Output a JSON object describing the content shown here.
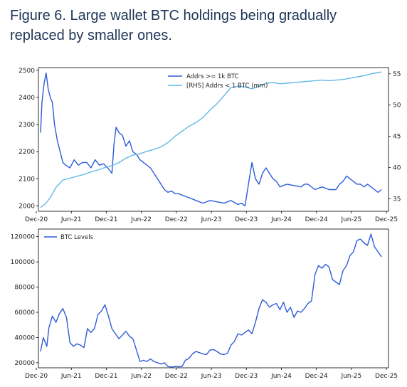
{
  "title": "Figure 6. Large wallet BTC holdings being gradually replaced by smaller ones.",
  "colors": {
    "dark_blue": "#2e5bd9",
    "light_blue": "#62b8ea",
    "title": "#1d3557"
  },
  "chart_data": [
    {
      "type": "line",
      "title": "",
      "xlabel": "",
      "ylabel": "",
      "x_ticks": [
        "Dec-20",
        "Jun-21",
        "Dec-21",
        "Jun-22",
        "Dec-22",
        "Jun-23",
        "Dec-23",
        "Jun-24",
        "Dec-24",
        "Jun-25",
        "Dec-25"
      ],
      "ylim": [
        1980,
        2510
      ],
      "y_ticks": [
        "2000",
        "2100",
        "2200",
        "2300",
        "2400",
        "2500"
      ],
      "y2lim": [
        33,
        56
      ],
      "y2_ticks": [
        "35",
        "40",
        "45",
        "50",
        "55"
      ],
      "legend_position": "top-center",
      "series": [
        {
          "name": "Addrs >= 1k BTC",
          "axis": "left",
          "color": "#2e5bd9",
          "x": [
            2020.98,
            2021.0,
            2021.03,
            2021.06,
            2021.09,
            2021.12,
            2021.15,
            2021.18,
            2021.22,
            2021.26,
            2021.3,
            2021.34,
            2021.4,
            2021.46,
            2021.52,
            2021.58,
            2021.64,
            2021.7,
            2021.76,
            2021.82,
            2021.88,
            2021.94,
            2022.0,
            2022.03,
            2022.06,
            2022.1,
            2022.15,
            2022.2,
            2022.25,
            2022.3,
            2022.35,
            2022.4,
            2022.45,
            2022.5,
            2022.55,
            2022.6,
            2022.65,
            2022.7,
            2022.75,
            2022.8,
            2022.85,
            2022.9,
            2022.95,
            2023.0,
            2023.1,
            2023.2,
            2023.3,
            2023.4,
            2023.5,
            2023.6,
            2023.7,
            2023.8,
            2023.85,
            2023.9,
            2023.95,
            2024.0,
            2024.05,
            2024.1,
            2024.15,
            2024.2,
            2024.25,
            2024.3,
            2024.35,
            2024.4,
            2024.5,
            2024.6,
            2024.7,
            2024.75,
            2024.8,
            2024.9,
            2025.0,
            2025.1,
            2025.2,
            2025.25,
            2025.3,
            2025.35,
            2025.4,
            2025.45,
            2025.5,
            2025.55,
            2025.6,
            2025.65,
            2025.7,
            2025.75,
            2025.8,
            2025.85
          ],
          "values": [
            2270,
            2380,
            2450,
            2490,
            2430,
            2400,
            2380,
            2300,
            2240,
            2200,
            2160,
            2150,
            2140,
            2170,
            2150,
            2160,
            2160,
            2140,
            2170,
            2150,
            2155,
            2140,
            2120,
            2230,
            2290,
            2270,
            2260,
            2220,
            2240,
            2200,
            2190,
            2170,
            2160,
            2150,
            2140,
            2120,
            2100,
            2080,
            2060,
            2050,
            2055,
            2045,
            2045,
            2040,
            2030,
            2020,
            2010,
            2020,
            2015,
            2010,
            2020,
            2005,
            2010,
            2000,
            2080,
            2160,
            2100,
            2080,
            2120,
            2140,
            2120,
            2100,
            2090,
            2070,
            2080,
            2075,
            2070,
            2080,
            2080,
            2060,
            2070,
            2060,
            2060,
            2080,
            2090,
            2110,
            2100,
            2090,
            2080,
            2080,
            2070,
            2080,
            2070,
            2060,
            2050,
            2060
          ]
        },
        {
          "name": "[RHS] Addrs < 1 BTC (mm)",
          "axis": "right",
          "color": "#62b8ea",
          "x": [
            2020.98,
            2021.05,
            2021.12,
            2021.2,
            2021.3,
            2021.4,
            2021.5,
            2021.6,
            2021.7,
            2021.8,
            2021.9,
            2022.0,
            2022.1,
            2022.2,
            2022.3,
            2022.4,
            2022.5,
            2022.6,
            2022.7,
            2022.8,
            2022.9,
            2023.0,
            2023.1,
            2023.2,
            2023.3,
            2023.4,
            2023.5,
            2023.6,
            2023.7,
            2023.8,
            2023.9,
            2024.0,
            2024.1,
            2024.2,
            2024.3,
            2024.4,
            2024.5,
            2024.6,
            2024.7,
            2024.8,
            2024.9,
            2025.0,
            2025.1,
            2025.2,
            2025.3,
            2025.4,
            2025.5,
            2025.6,
            2025.7,
            2025.8,
            2025.85
          ],
          "values": [
            33.6,
            34.2,
            35.2,
            36.8,
            38.0,
            38.3,
            38.6,
            38.9,
            39.3,
            39.6,
            40.0,
            40.3,
            40.8,
            41.5,
            42.0,
            42.2,
            42.6,
            42.9,
            43.3,
            44.0,
            45.0,
            45.8,
            46.6,
            47.2,
            48.0,
            49.2,
            50.2,
            51.5,
            52.8,
            53.0,
            52.9,
            52.6,
            53.0,
            53.5,
            53.6,
            53.4,
            53.5,
            53.6,
            53.7,
            53.8,
            53.9,
            54.0,
            53.9,
            54.0,
            54.1,
            54.3,
            54.5,
            54.7,
            55.0,
            55.2,
            55.3
          ]
        }
      ]
    },
    {
      "type": "line",
      "title": "",
      "xlabel": "",
      "ylabel": "",
      "x_ticks": [
        "Dec-20",
        "Jun-21",
        "Dec-21",
        "Jun-22",
        "Dec-22",
        "Jun-23",
        "Dec-23",
        "Jun-24",
        "Dec-24",
        "Jun-25",
        "Dec-25"
      ],
      "ylim": [
        16000,
        126000
      ],
      "y_ticks": [
        "20000",
        "40000",
        "60000",
        "80000",
        "100000",
        "120000"
      ],
      "legend_position": "top-left",
      "series": [
        {
          "name": "BTC Levels",
          "axis": "left",
          "color": "#2e5bd9",
          "x": [
            2020.98,
            2021.02,
            2021.07,
            2021.1,
            2021.15,
            2021.2,
            2021.25,
            2021.3,
            2021.35,
            2021.4,
            2021.45,
            2021.5,
            2021.55,
            2021.6,
            2021.65,
            2021.7,
            2021.75,
            2021.8,
            2021.85,
            2021.9,
            2021.95,
            2022.0,
            2022.05,
            2022.1,
            2022.15,
            2022.2,
            2022.25,
            2022.3,
            2022.35,
            2022.4,
            2022.45,
            2022.5,
            2022.55,
            2022.6,
            2022.65,
            2022.7,
            2022.75,
            2022.8,
            2022.85,
            2022.9,
            2022.95,
            2023.0,
            2023.05,
            2023.1,
            2023.15,
            2023.2,
            2023.25,
            2023.3,
            2023.35,
            2023.4,
            2023.45,
            2023.5,
            2023.55,
            2023.6,
            2023.65,
            2023.7,
            2023.75,
            2023.8,
            2023.85,
            2023.9,
            2023.95,
            2024.0,
            2024.05,
            2024.1,
            2024.15,
            2024.2,
            2024.25,
            2024.3,
            2024.35,
            2024.4,
            2024.45,
            2024.5,
            2024.55,
            2024.6,
            2024.65,
            2024.7,
            2024.75,
            2024.8,
            2024.85,
            2024.9,
            2024.95,
            2025.0,
            2025.05,
            2025.1,
            2025.15,
            2025.2,
            2025.25,
            2025.3,
            2025.35,
            2025.4,
            2025.45,
            2025.5,
            2025.55,
            2025.6,
            2025.65,
            2025.7,
            2025.75,
            2025.8,
            2025.85
          ],
          "values": [
            29000,
            40000,
            33000,
            48000,
            57000,
            52000,
            59000,
            63000,
            56000,
            36000,
            33000,
            35000,
            34000,
            32000,
            47000,
            44000,
            47000,
            58000,
            61000,
            66000,
            57000,
            47000,
            43000,
            39000,
            42000,
            45000,
            41000,
            39000,
            30000,
            21000,
            22000,
            21000,
            23000,
            21000,
            20000,
            19000,
            20000,
            17000,
            16500,
            17000,
            16800,
            17000,
            22000,
            23500,
            27000,
            29000,
            28000,
            27000,
            26500,
            30000,
            30500,
            29000,
            27000,
            26500,
            27500,
            34000,
            37000,
            43000,
            42000,
            44000,
            46000,
            43000,
            52000,
            63000,
            70000,
            68000,
            64000,
            66000,
            67000,
            62000,
            68000,
            60000,
            64000,
            56000,
            61000,
            60000,
            63000,
            67000,
            69000,
            90000,
            97000,
            95000,
            98000,
            96000,
            86000,
            84000,
            82000,
            93000,
            97000,
            105000,
            108000,
            117000,
            118000,
            115000,
            113000,
            122000,
            112000,
            108000,
            104000
          ]
        }
      ]
    }
  ]
}
